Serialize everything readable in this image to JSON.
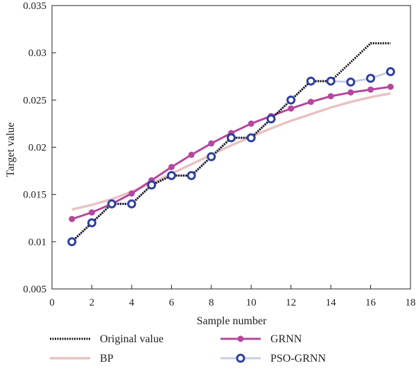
{
  "chart_data": {
    "type": "line",
    "xlabel": "Sample number",
    "ylabel": "Target value",
    "xlim": [
      0,
      18
    ],
    "ylim": [
      0.005,
      0.035
    ],
    "xticks": [
      "0",
      "2",
      "4",
      "6",
      "8",
      "10",
      "12",
      "14",
      "16",
      "18"
    ],
    "yticks": [
      "0.005",
      "0.01",
      "0.015",
      "0.02",
      "0.025",
      "0.03",
      "0.035"
    ],
    "grid": false,
    "legend_position": "bottom",
    "x": [
      1,
      2,
      3,
      4,
      5,
      6,
      7,
      8,
      9,
      10,
      11,
      12,
      13,
      14,
      15,
      16,
      17
    ],
    "series": [
      {
        "name": "Original value",
        "style": "dotted-black",
        "color": "#111111",
        "values": [
          0.01,
          0.012,
          0.014,
          0.014,
          0.016,
          0.017,
          0.017,
          0.019,
          0.021,
          0.021,
          0.023,
          0.025,
          0.027,
          0.027,
          0.029,
          0.031,
          0.031
        ]
      },
      {
        "name": "GRNN",
        "style": "solid-circle-markers",
        "color": "#b5479e",
        "values": [
          0.0124,
          0.0131,
          0.014,
          0.0151,
          0.0165,
          0.0179,
          0.0192,
          0.0204,
          0.0215,
          0.0225,
          0.0233,
          0.0241,
          0.0248,
          0.0254,
          0.0258,
          0.0261,
          0.0264
        ]
      },
      {
        "name": "BP",
        "style": "thick-pale-line",
        "color": "#e8c2c2",
        "values": [
          0.0134,
          0.0139,
          0.0145,
          0.0153,
          0.0162,
          0.0172,
          0.0182,
          0.0192,
          0.0202,
          0.0211,
          0.022,
          0.0228,
          0.0235,
          0.0242,
          0.0248,
          0.0253,
          0.0257
        ]
      },
      {
        "name": "PSO-GRNN",
        "style": "light-line-open-circle-markers",
        "color": "#2e3f9e",
        "values": [
          0.01,
          0.012,
          0.014,
          0.014,
          0.016,
          0.017,
          0.017,
          0.019,
          0.021,
          0.021,
          0.023,
          0.025,
          0.027,
          0.027,
          0.0269,
          0.0273,
          0.028
        ]
      }
    ]
  }
}
